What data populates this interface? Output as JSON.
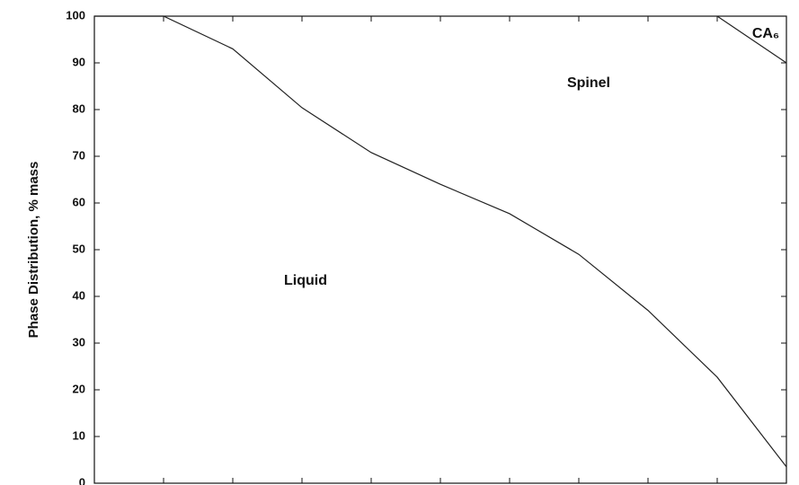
{
  "chart_data": {
    "type": "line",
    "ylabel": "Phase Distribution, % mass",
    "categories": [
      null,
      null,
      null,
      null,
      null,
      null,
      null,
      null,
      null,
      null,
      null
    ],
    "series": [
      {
        "color": "#222222",
        "values": [
          100,
          100,
          93,
          80.4,
          70.8,
          64,
          57.7,
          49,
          37,
          22.7,
          3.5
        ]
      },
      {
        "color": "#222222",
        "values": [
          null,
          null,
          null,
          null,
          null,
          null,
          null,
          null,
          null,
          100,
          90
        ]
      }
    ],
    "ylim": [
      0,
      100
    ],
    "yticks": [
      0,
      10,
      20,
      30,
      40,
      50,
      60,
      70,
      80,
      90,
      100
    ],
    "annotations": [
      "Liquid",
      "Spinel",
      "CA₆"
    ]
  }
}
